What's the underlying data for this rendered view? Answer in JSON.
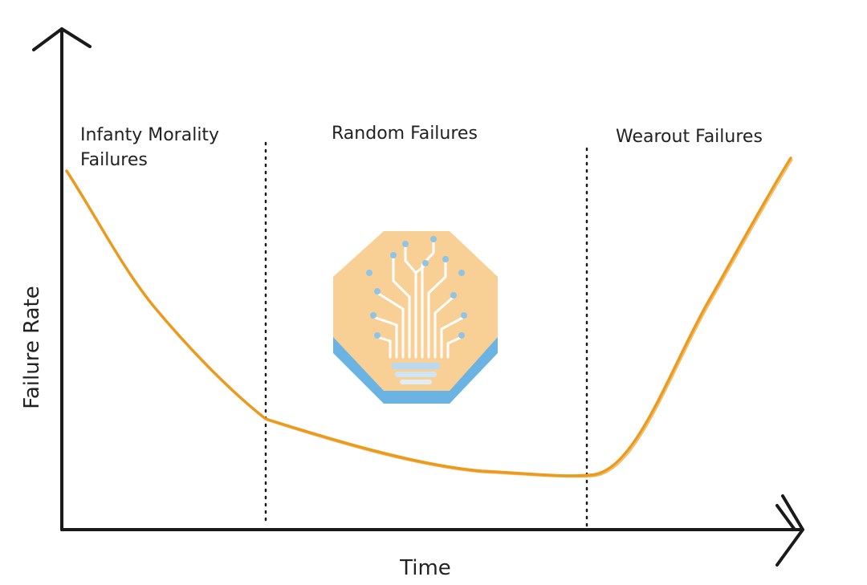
{
  "phases": [
    {
      "lines": [
        "Infanty Morality",
        "Failures"
      ]
    },
    {
      "lines": [
        "Random Failures"
      ]
    },
    {
      "lines": [
        "Wearout Failures"
      ]
    }
  ],
  "axes": {
    "y": "Failure Rate",
    "x": "Time"
  }
}
